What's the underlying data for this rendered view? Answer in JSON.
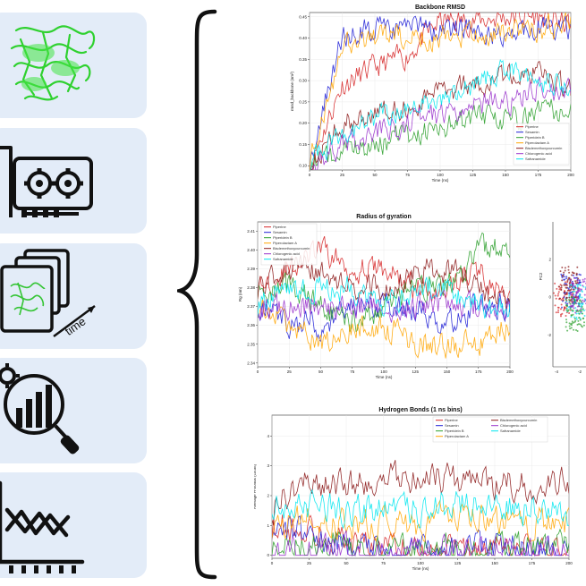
{
  "chart_data": [
    {
      "type": "line",
      "title": "Backbone RMSD",
      "xlabel": "Time (ns)",
      "ylabel": "rmsd_backbone (nm²)",
      "xlim": [
        0,
        200
      ],
      "ylim": [
        0.09,
        0.46
      ],
      "xticks": [
        0,
        25,
        50,
        75,
        100,
        125,
        150,
        175,
        200
      ],
      "yticks": [
        0.1,
        0.15,
        0.2,
        0.25,
        0.3,
        0.35,
        0.4,
        0.45
      ],
      "legend_position": "bottom-right",
      "x": [
        0,
        25,
        50,
        75,
        100,
        125,
        150,
        175,
        200
      ],
      "series": [
        {
          "name": "Piperine",
          "color": "#d62728",
          "values": [
            0.1,
            0.29,
            0.33,
            0.36,
            0.44,
            0.44,
            0.45,
            0.45,
            0.43
          ]
        },
        {
          "name": "Sesamin",
          "color": "#1f1fd6",
          "values": [
            0.1,
            0.41,
            0.42,
            0.42,
            0.42,
            0.42,
            0.41,
            0.43,
            0.42
          ]
        },
        {
          "name": "Piperidein B",
          "color": "#2ca02c",
          "values": [
            0.1,
            0.13,
            0.15,
            0.17,
            0.19,
            0.21,
            0.21,
            0.23,
            0.23
          ]
        },
        {
          "name": "Piperolactam A",
          "color": "#ffa500",
          "values": [
            0.1,
            0.38,
            0.4,
            0.4,
            0.4,
            0.41,
            0.41,
            0.42,
            0.43
          ]
        },
        {
          "name": "Bisdemethoxycurcumin",
          "color": "#8c1a1a",
          "values": [
            0.1,
            0.2,
            0.22,
            0.24,
            0.27,
            0.29,
            0.31,
            0.33,
            0.27
          ]
        },
        {
          "name": "Chlorogenic acid",
          "color": "#9932cc",
          "values": [
            0.1,
            0.15,
            0.17,
            0.2,
            0.22,
            0.24,
            0.25,
            0.28,
            0.27
          ]
        },
        {
          "name": "Safranamide",
          "color": "#00e5ee",
          "values": [
            0.1,
            0.18,
            0.21,
            0.24,
            0.26,
            0.28,
            0.33,
            0.3,
            0.29
          ]
        }
      ]
    },
    {
      "type": "line",
      "title": "Radius of gyration",
      "xlabel": "Time (ns)",
      "ylabel": "Rg (nm)",
      "xlim": [
        0,
        200
      ],
      "ylim": [
        2.338,
        2.415
      ],
      "xticks": [
        0,
        25,
        50,
        75,
        100,
        125,
        150,
        175,
        200
      ],
      "yticks": [
        2.34,
        2.35,
        2.36,
        2.37,
        2.38,
        2.39,
        2.4,
        2.41
      ],
      "legend_position": "top-left",
      "x": [
        0,
        25,
        50,
        75,
        100,
        125,
        150,
        175,
        200
      ],
      "series": [
        {
          "name": "Piperine",
          "color": "#d62728",
          "values": [
            2.38,
            2.39,
            2.4,
            2.39,
            2.39,
            2.38,
            2.38,
            2.39,
            2.37
          ]
        },
        {
          "name": "Sesamin",
          "color": "#1f1fd6",
          "values": [
            2.37,
            2.36,
            2.36,
            2.37,
            2.37,
            2.37,
            2.36,
            2.37,
            2.37
          ]
        },
        {
          "name": "Piperidein B",
          "color": "#2ca02c",
          "values": [
            2.38,
            2.38,
            2.37,
            2.36,
            2.37,
            2.38,
            2.38,
            2.4,
            2.4
          ]
        },
        {
          "name": "Piperolactam A",
          "color": "#ffa500",
          "values": [
            2.37,
            2.36,
            2.35,
            2.36,
            2.36,
            2.35,
            2.35,
            2.35,
            2.36
          ]
        },
        {
          "name": "Bisdemethoxycurcumin",
          "color": "#8c1a1a",
          "values": [
            2.38,
            2.39,
            2.39,
            2.38,
            2.38,
            2.39,
            2.39,
            2.38,
            2.37
          ]
        },
        {
          "name": "Chlorogenic acid",
          "color": "#9932cc",
          "values": [
            2.37,
            2.37,
            2.37,
            2.37,
            2.37,
            2.37,
            2.37,
            2.37,
            2.37
          ]
        },
        {
          "name": "Safranamide",
          "color": "#00e5ee",
          "values": [
            2.37,
            2.38,
            2.38,
            2.38,
            2.37,
            2.38,
            2.38,
            2.37,
            2.37
          ]
        }
      ]
    },
    {
      "type": "line",
      "title": "Hydrogen Bonds (1 ns bins)",
      "xlabel": "Time (ns)",
      "ylabel": "Average H-bonds (count)",
      "xlim": [
        0,
        200
      ],
      "ylim": [
        -0.1,
        4.7
      ],
      "xticks": [
        0,
        25,
        50,
        75,
        100,
        125,
        150,
        175,
        200
      ],
      "yticks": [
        0,
        1,
        2,
        3,
        4
      ],
      "legend_position": "top-right",
      "x": [
        0,
        25,
        50,
        75,
        100,
        125,
        150,
        175,
        200
      ],
      "series": [
        {
          "name": "Piperine",
          "color": "#d62728",
          "values": [
            1.0,
            0.8,
            0.5,
            0.3,
            0.2,
            0.2,
            0.1,
            0.1,
            0.1
          ]
        },
        {
          "name": "Sesamin",
          "color": "#1f1fd6",
          "values": [
            1.0,
            0.7,
            0.4,
            0.3,
            0.2,
            0.3,
            0.2,
            0.2,
            0.2
          ]
        },
        {
          "name": "Piperidein B",
          "color": "#2ca02c",
          "values": [
            0.2,
            0.3,
            0.3,
            0.2,
            0.2,
            0.2,
            0.2,
            0.2,
            0.2
          ]
        },
        {
          "name": "Piperolactam A",
          "color": "#ffa500",
          "values": [
            1.0,
            1.2,
            1.0,
            1.1,
            1.0,
            1.3,
            1.2,
            1.1,
            1.0
          ]
        },
        {
          "name": "Bisdemethoxycurcumin",
          "color": "#8c1a1a",
          "values": [
            1.6,
            2.5,
            2.4,
            2.6,
            2.5,
            2.6,
            2.4,
            2.3,
            2.5
          ]
        },
        {
          "name": "Chlorogenic acid",
          "color": "#9932cc",
          "values": [
            0.1,
            0.1,
            0.2,
            0.1,
            0.2,
            0.1,
            0.2,
            0.1,
            0.1
          ]
        },
        {
          "name": "Safranamide",
          "color": "#00e5ee",
          "values": [
            1.8,
            1.6,
            1.5,
            1.6,
            1.5,
            1.7,
            1.6,
            1.5,
            1.3
          ]
        }
      ]
    },
    {
      "type": "scatter",
      "title": "",
      "xlabel": "",
      "ylabel": "PC2",
      "xlim": [
        -4.5,
        0
      ],
      "xticks": [
        -4,
        -2
      ],
      "yticks": [
        -2,
        0,
        2
      ],
      "note": "partially visible PCA scatter at right edge"
    }
  ],
  "icons": [
    "protein-structure-icon",
    "gpu-card-icon",
    "trajectory-frames-icon",
    "analysis-magnifier-icon",
    "line-plot-icon"
  ],
  "time_label": "time"
}
